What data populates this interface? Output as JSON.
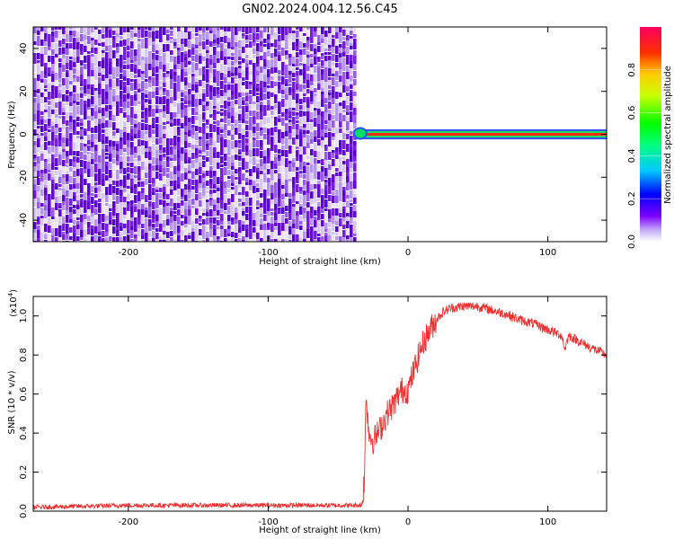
{
  "title": "GN02.2024.004.12.56.C45",
  "colors": {
    "series": "#ee3030",
    "purple_dark": "#6a00e8",
    "purple_light": "#d8c8f8",
    "band_core": "#ff2a10"
  },
  "chart_data": [
    {
      "type": "heatmap",
      "xlabel": "Height of straight line (km)",
      "ylabel": "Frequency (Hz)",
      "xlim": [
        -268,
        142
      ],
      "ylim": [
        -50,
        50
      ],
      "x_ticks": [
        "-200",
        "-100",
        "0",
        "100"
      ],
      "y_ticks": [
        "40",
        "20",
        "0",
        "-20",
        "-40"
      ],
      "noise_region_x": [
        -268,
        -38
      ],
      "signal_band": {
        "x_start": -38,
        "x_end": 142,
        "freq_center": 0,
        "freq_halfwidth": 1.5
      },
      "colorbar": {
        "label": "Normalized spectral amplitude",
        "range": [
          0,
          1
        ],
        "ticks": [
          "0.0",
          "0.2",
          "0.4",
          "0.6",
          "0.8"
        ]
      },
      "grid": false
    },
    {
      "type": "line",
      "xlabel": "Height of straight line (km)",
      "ylabel": "SNR (10 * v/v)",
      "y_multiplier": "(x10",
      "y_multiplier_exp": "4",
      "y_multiplier_close": ")",
      "xlim": [
        -268,
        142
      ],
      "ylim": [
        0,
        1.1
      ],
      "x_ticks": [
        "-200",
        "-100",
        "0",
        "100"
      ],
      "y_ticks": [
        "0.0",
        "0.2",
        "0.4",
        "0.6",
        "0.8",
        "1.0"
      ],
      "series": [
        {
          "x": [
            -268,
            -200,
            -150,
            -100,
            -50,
            -33,
            -31,
            -30,
            -28,
            -25,
            -20,
            -15,
            -10,
            -5,
            0,
            5,
            10,
            15,
            20,
            25,
            30,
            40,
            50,
            60,
            70,
            80,
            90,
            100,
            110,
            112,
            115,
            120,
            130,
            142
          ],
          "y": [
            0.02,
            0.03,
            0.03,
            0.03,
            0.03,
            0.03,
            0.18,
            0.62,
            0.4,
            0.36,
            0.42,
            0.5,
            0.55,
            0.62,
            0.62,
            0.74,
            0.85,
            0.92,
            0.98,
            1.02,
            1.04,
            1.05,
            1.05,
            1.03,
            1.01,
            0.98,
            0.96,
            0.93,
            0.9,
            0.83,
            0.9,
            0.88,
            0.84,
            0.8
          ]
        }
      ]
    }
  ]
}
